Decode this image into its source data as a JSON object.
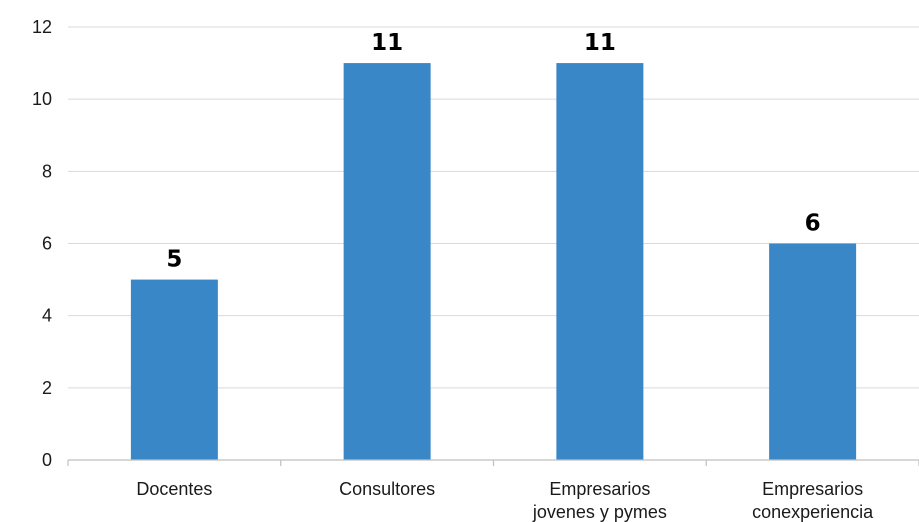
{
  "chart_data": {
    "type": "bar",
    "title": "",
    "xlabel": "",
    "ylabel": "",
    "categories": [
      [
        "Docentes"
      ],
      [
        "Consultores"
      ],
      [
        "Empresarios",
        "jovenes y pymes"
      ],
      [
        "Empresarios",
        "conexperiencia"
      ]
    ],
    "values": [
      5,
      11,
      11,
      6
    ],
    "ylim": [
      0,
      12
    ],
    "yticks": [
      0,
      2,
      4,
      6,
      8,
      10,
      12
    ],
    "grid": true,
    "data_labels": true,
    "colors": {
      "bar": "#3a87c8",
      "grid": "#d9d9d9",
      "axis": "#bfbfbf"
    }
  }
}
